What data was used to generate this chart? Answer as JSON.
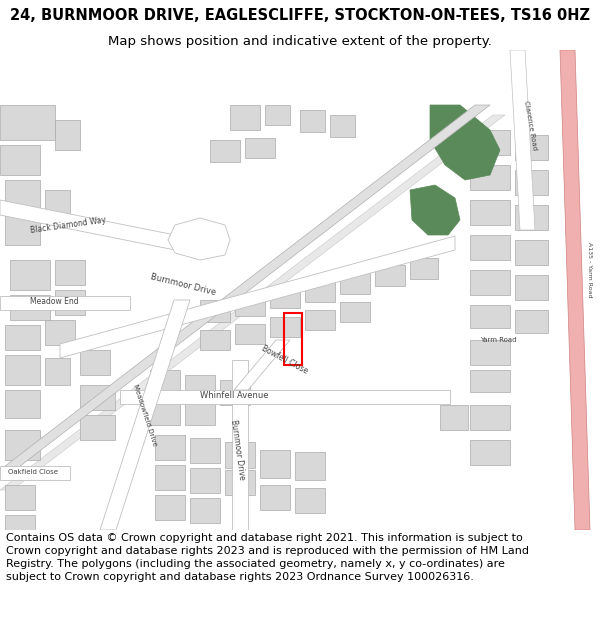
{
  "title_line1": "24, BURNMOOR DRIVE, EAGLESCLIFFE, STOCKTON-ON-TEES, TS16 0HZ",
  "title_line2": "Map shows position and indicative extent of the property.",
  "footer_text": "Contains OS data © Crown copyright and database right 2021. This information is subject to Crown copyright and database rights 2023 and is reproduced with the permission of HM Land Registry. The polygons (including the associated geometry, namely x, y co-ordinates) are subject to Crown copyright and database rights 2023 Ordnance Survey 100026316.",
  "map_bg": "#ffffff",
  "road_color": "#e8e8e8",
  "road_outline": "#c0c0c0",
  "building_color": "#d8d8d8",
  "building_outline": "#aaaaaa",
  "green_color": "#5a8a5a",
  "pink_road_color": "#f0b0b0",
  "pink_road_outline": "#d08080",
  "highlight_color": "#ff0000",
  "title_fontsize": 10.5,
  "subtitle_fontsize": 9.5,
  "footer_fontsize": 8.0,
  "label_color": "#444444",
  "diagonal_road_color": "#e0e0e0",
  "diagonal_road_outline": "#b0b0b0"
}
